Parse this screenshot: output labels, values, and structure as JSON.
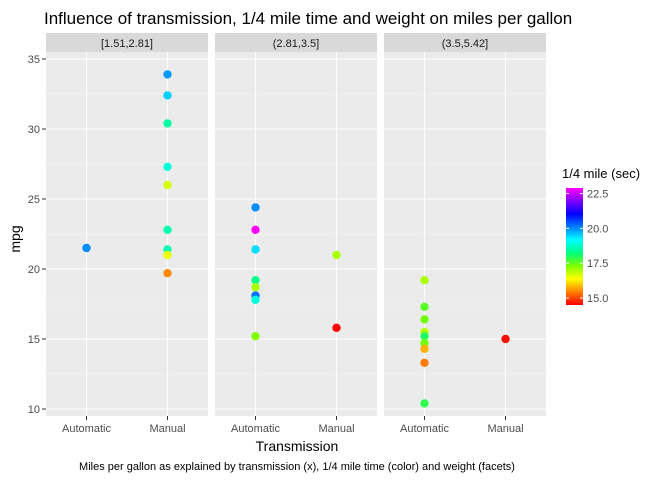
{
  "chart_data": {
    "type": "scatter",
    "title": "Influence of transmission, 1/4 mile time and weight on miles per gallon",
    "caption": "Miles per gallon as explained by transmission (x), 1/4 mile time (color) and weight (facets)",
    "xlabel": "Transmission",
    "ylabel": "mpg",
    "categories": [
      "Automatic",
      "Manual"
    ],
    "ylim": [
      9.5,
      35.5
    ],
    "yticks": [
      10,
      15,
      20,
      25,
      30,
      35
    ],
    "grid": true,
    "legend": {
      "title": "1/4 mile (sec)",
      "placement": "right",
      "ticks": [
        15.0,
        17.5,
        20.0,
        22.5
      ],
      "tick_labels": [
        "15.0",
        "17.5",
        "20.0",
        "22.5"
      ],
      "range": [
        14.5,
        22.9
      ],
      "colors": [
        "#ff0000",
        "#ff8000",
        "#ffff00",
        "#80ff00",
        "#00ff80",
        "#00ffff",
        "#0080ff",
        "#0000ff",
        "#8000ff",
        "#ff00ff"
      ]
    },
    "facets": [
      {
        "label": "[1.51,2.81]",
        "points": [
          {
            "x": "Automatic",
            "y": 21.5,
            "qsec": 20.0
          },
          {
            "x": "Manual",
            "y": 33.9,
            "qsec": 19.9
          },
          {
            "x": "Manual",
            "y": 32.4,
            "qsec": 19.5
          },
          {
            "x": "Manual",
            "y": 30.4,
            "qsec": 18.5
          },
          {
            "x": "Manual",
            "y": 27.3,
            "qsec": 18.9
          },
          {
            "x": "Manual",
            "y": 26.0,
            "qsec": 16.7
          },
          {
            "x": "Manual",
            "y": 22.8,
            "qsec": 18.6
          },
          {
            "x": "Manual",
            "y": 21.4,
            "qsec": 18.6
          },
          {
            "x": "Manual",
            "y": 21.0,
            "qsec": 16.5
          },
          {
            "x": "Manual",
            "y": 19.7,
            "qsec": 15.5
          }
        ]
      },
      {
        "label": "(2.81,3.5]",
        "points": [
          {
            "x": "Automatic",
            "y": 24.4,
            "qsec": 20.0
          },
          {
            "x": "Automatic",
            "y": 22.8,
            "qsec": 22.9
          },
          {
            "x": "Automatic",
            "y": 21.4,
            "qsec": 19.4
          },
          {
            "x": "Automatic",
            "y": 19.2,
            "qsec": 18.3
          },
          {
            "x": "Automatic",
            "y": 18.7,
            "qsec": 17.0
          },
          {
            "x": "Automatic",
            "y": 18.1,
            "qsec": 20.2
          },
          {
            "x": "Automatic",
            "y": 17.8,
            "qsec": 18.9
          },
          {
            "x": "Automatic",
            "y": 15.2,
            "qsec": 17.3
          },
          {
            "x": "Manual",
            "y": 21.0,
            "qsec": 17.0
          },
          {
            "x": "Manual",
            "y": 15.8,
            "qsec": 14.5
          }
        ]
      },
      {
        "label": "(3.5,5.42]",
        "points": [
          {
            "x": "Automatic",
            "y": 19.2,
            "qsec": 17.0
          },
          {
            "x": "Automatic",
            "y": 17.3,
            "qsec": 17.6
          },
          {
            "x": "Automatic",
            "y": 16.4,
            "qsec": 17.4
          },
          {
            "x": "Automatic",
            "y": 15.5,
            "qsec": 16.9
          },
          {
            "x": "Automatic",
            "y": 15.2,
            "qsec": 18.0
          },
          {
            "x": "Automatic",
            "y": 14.7,
            "qsec": 17.4
          },
          {
            "x": "Automatic",
            "y": 14.3,
            "qsec": 15.8
          },
          {
            "x": "Automatic",
            "y": 13.3,
            "qsec": 15.4
          },
          {
            "x": "Automatic",
            "y": 10.4,
            "qsec": 17.9
          },
          {
            "x": "Manual",
            "y": 15.0,
            "qsec": 14.6
          }
        ]
      }
    ]
  }
}
